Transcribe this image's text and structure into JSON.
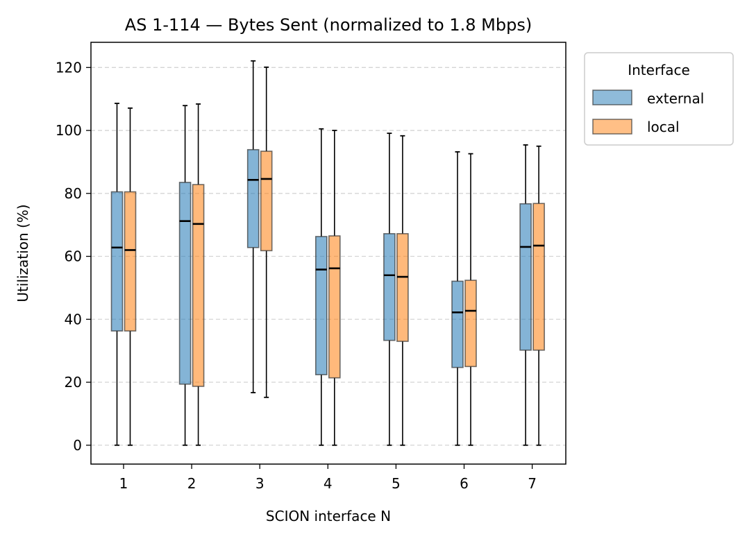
{
  "chart_data": {
    "type": "box",
    "title": "AS 1-114 — Bytes Sent (normalized to 1.8 Mbps)",
    "xlabel": "SCION interface N",
    "ylabel": "Utilization (%)",
    "ylim": [
      -6,
      128
    ],
    "yticks": [
      0,
      20,
      40,
      60,
      80,
      100,
      120
    ],
    "grid": "y-dashed",
    "categories": [
      "1",
      "2",
      "3",
      "4",
      "5",
      "6",
      "7"
    ],
    "legend": {
      "title": "Interface",
      "placement": "outside-top-right"
    },
    "series": [
      {
        "name": "external",
        "color": "#1f77b4",
        "boxes": [
          {
            "min": 0,
            "q1": 36.3,
            "median": 62.8,
            "q3": 80.5,
            "max": 108.6
          },
          {
            "min": 0,
            "q1": 19.4,
            "median": 71.2,
            "q3": 83.5,
            "max": 107.9
          },
          {
            "min": 16.7,
            "q1": 62.8,
            "median": 84.3,
            "q3": 93.9,
            "max": 122.1
          },
          {
            "min": 0,
            "q1": 22.4,
            "median": 55.8,
            "q3": 66.3,
            "max": 100.5
          },
          {
            "min": 0,
            "q1": 33.3,
            "median": 54.0,
            "q3": 67.2,
            "max": 99.1
          },
          {
            "min": 0,
            "q1": 24.7,
            "median": 42.2,
            "q3": 52.1,
            "max": 93.2
          },
          {
            "min": 0,
            "q1": 30.2,
            "median": 63.0,
            "q3": 76.7,
            "max": 95.4
          }
        ]
      },
      {
        "name": "local",
        "color": "#ff7f0e",
        "boxes": [
          {
            "min": 0,
            "q1": 36.3,
            "median": 62.0,
            "q3": 80.5,
            "max": 107.1
          },
          {
            "min": 0,
            "q1": 18.7,
            "median": 70.3,
            "q3": 82.8,
            "max": 108.4
          },
          {
            "min": 15.2,
            "q1": 61.8,
            "median": 84.6,
            "q3": 93.4,
            "max": 120.1
          },
          {
            "min": 0,
            "q1": 21.4,
            "median": 56.2,
            "q3": 66.5,
            "max": 100.0
          },
          {
            "min": 0,
            "q1": 33.0,
            "median": 53.5,
            "q3": 67.2,
            "max": 98.3
          },
          {
            "min": 0,
            "q1": 25.0,
            "median": 42.7,
            "q3": 52.4,
            "max": 92.6
          },
          {
            "min": 0,
            "q1": 30.2,
            "median": 63.4,
            "q3": 76.8,
            "max": 95.0
          }
        ]
      }
    ]
  }
}
